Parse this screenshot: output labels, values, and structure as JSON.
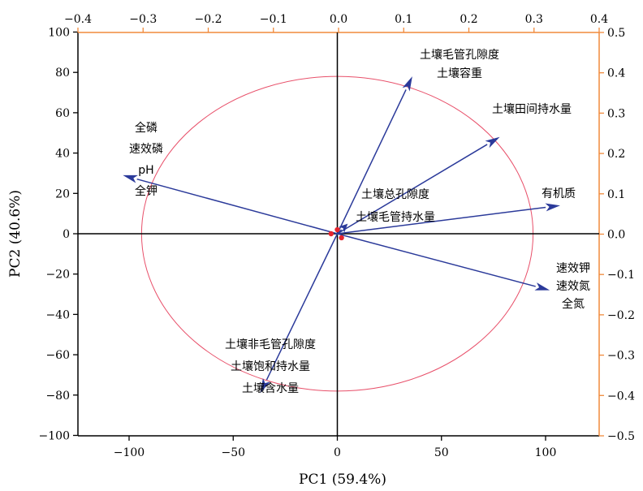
{
  "chart_data": {
    "type": "scatter",
    "title": "",
    "xlabel": "PC1 (59.4%)",
    "ylabel": "PC2 (40.6%)",
    "xlim": [
      -125,
      125
    ],
    "ylim": [
      -100,
      100
    ],
    "x_ticks": [
      -100,
      -50,
      0,
      50,
      100
    ],
    "y_ticks": [
      -100,
      -80,
      -60,
      -40,
      -20,
      0,
      20,
      40,
      60,
      80,
      100
    ],
    "top_axis": {
      "range": [
        -0.4,
        0.4
      ],
      "ticks": [
        -0.4,
        -0.3,
        -0.2,
        -0.1,
        0.0,
        0.1,
        0.2,
        0.3,
        0.4
      ]
    },
    "right_axis": {
      "range": [
        -0.5,
        0.5
      ],
      "ticks": [
        -0.5,
        -0.4,
        -0.3,
        -0.2,
        -0.1,
        0.0,
        0.1,
        0.2,
        0.3,
        0.4,
        0.5
      ]
    },
    "grid": false,
    "reference_lines": {
      "x": 0,
      "y": 0
    },
    "correlation_circle": {
      "center": [
        0,
        0
      ],
      "rx": 94,
      "ry": 78
    },
    "arrows": [
      {
        "tip": [
          -103,
          29
        ],
        "labels": [
          "全磷",
          "速效磷",
          "pH",
          "全钾"
        ]
      },
      {
        "tip": [
          36,
          78
        ],
        "labels": [
          "土壤毛管孔隙度",
          "土壤容重"
        ]
      },
      {
        "tip": [
          78,
          48
        ],
        "labels": [
          "土壤田间持水量"
        ]
      },
      {
        "tip": [
          107,
          14
        ],
        "labels": [
          "有机质"
        ]
      },
      {
        "tip": [
          5,
          5
        ],
        "labels": [
          "土壤总孔隙度",
          "土壤毛管持水量"
        ]
      },
      {
        "tip": [
          102,
          -28
        ],
        "labels": [
          "速效钾",
          "速效氮",
          "全氮"
        ]
      },
      {
        "tip": [
          -37,
          -79
        ],
        "labels": [
          "土壤非毛管孔隙度",
          "土壤饱和持水量",
          "土壤含水量"
        ]
      }
    ],
    "origin_points": [
      [
        -3,
        0
      ],
      [
        0,
        2
      ],
      [
        2,
        -2
      ]
    ],
    "colors": {
      "arrow": "#2b3a9a",
      "circle": "#e8506a",
      "points": "#e6262e",
      "axis_left_bottom": "#000000",
      "axis_top_right": "#f08a3c",
      "zero_lines": "#000000"
    }
  }
}
